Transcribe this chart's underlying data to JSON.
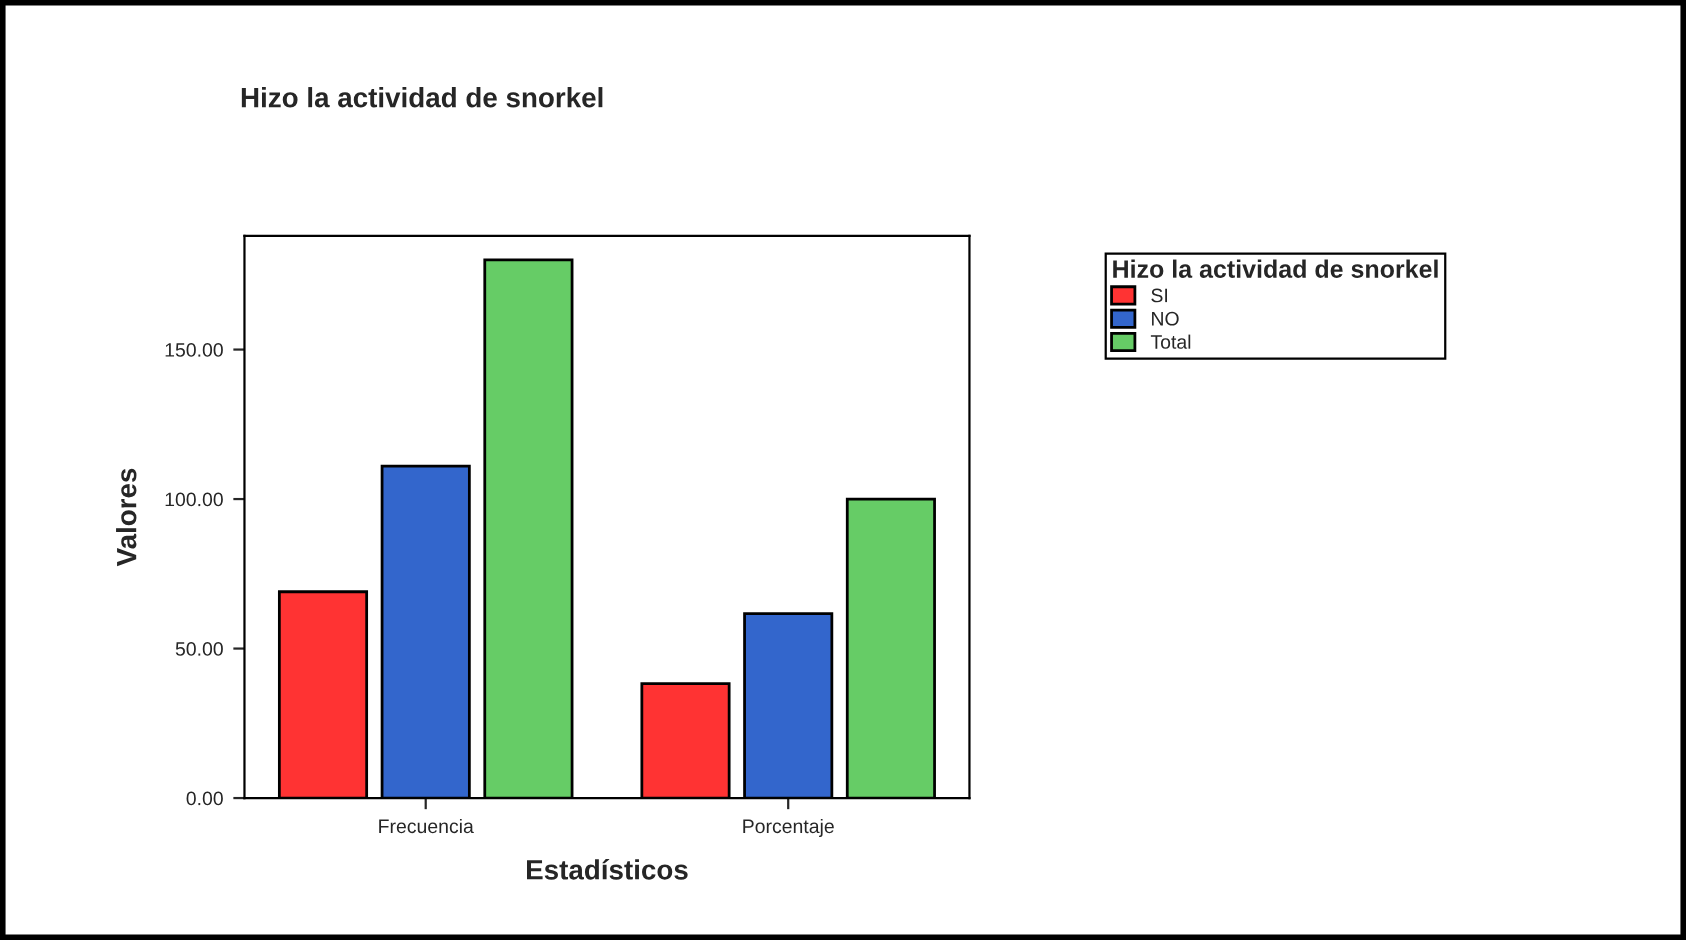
{
  "chart_data": {
    "type": "bar",
    "title": "Hizo la actividad de snorkel",
    "xlabel": "Estadísticos",
    "ylabel": "Valores",
    "legend_title": "Hizo la actividad de snorkel",
    "categories": [
      "Frecuencia",
      "Porcentaje"
    ],
    "series": [
      {
        "name": "SI",
        "color": "#ff3333",
        "values": [
          69,
          38.3
        ]
      },
      {
        "name": "NO",
        "color": "#3366cc",
        "values": [
          111,
          61.7
        ]
      },
      {
        "name": "Total",
        "color": "#66cc66",
        "values": [
          180,
          100
        ]
      }
    ],
    "ylim": [
      0,
      188
    ],
    "yticks": [
      {
        "value": 0,
        "label": "0.00"
      },
      {
        "value": 50,
        "label": "50.00"
      },
      {
        "value": 100,
        "label": "100.00"
      },
      {
        "value": 150,
        "label": "150.00"
      }
    ],
    "grid": false,
    "legend": "top right"
  }
}
